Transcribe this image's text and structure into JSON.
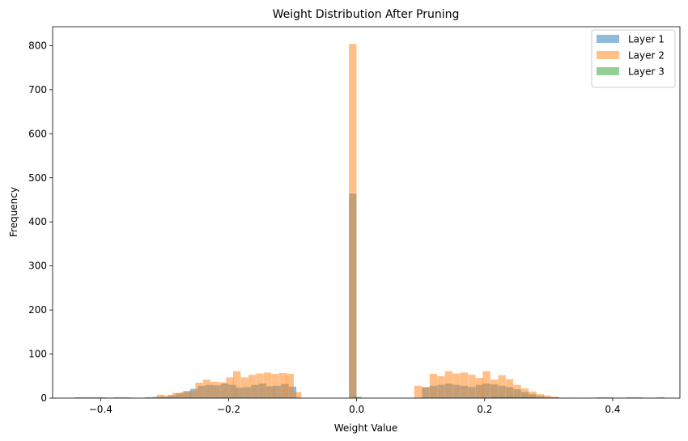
{
  "chart_data": {
    "type": "bar",
    "title": "Weight Distribution After Pruning",
    "xlabel": "Weight Value",
    "ylabel": "Frequency",
    "xlim": [
      -0.475,
      0.505
    ],
    "ylim": [
      0,
      843
    ],
    "xticks": [
      -0.4,
      -0.2,
      0.0,
      0.2,
      0.4
    ],
    "xtick_labels": [
      "−0.4",
      "−0.2",
      "0.0",
      "0.2",
      "0.4"
    ],
    "yticks": [
      0,
      100,
      200,
      300,
      400,
      500,
      600,
      700,
      800
    ],
    "ytick_labels": [
      "0",
      "100",
      "200",
      "300",
      "400",
      "500",
      "600",
      "700",
      "800"
    ],
    "legend_position": "top-right",
    "opacity": 0.5,
    "series": [
      {
        "name": "Layer 1",
        "color": "#1f77b4",
        "bin_width": 0.0118,
        "bins": [
          [
            -0.362,
            1
          ],
          [
            -0.331,
            2
          ],
          [
            -0.319,
            3
          ],
          [
            -0.307,
            4
          ],
          [
            -0.295,
            7
          ],
          [
            -0.283,
            11
          ],
          [
            -0.271,
            16
          ],
          [
            -0.26,
            21
          ],
          [
            -0.248,
            28
          ],
          [
            -0.236,
            30
          ],
          [
            -0.224,
            29
          ],
          [
            -0.212,
            33
          ],
          [
            -0.2,
            30
          ],
          [
            -0.189,
            24
          ],
          [
            -0.177,
            25
          ],
          [
            -0.165,
            30
          ],
          [
            -0.153,
            33
          ],
          [
            -0.141,
            27
          ],
          [
            -0.13,
            28
          ],
          [
            -0.118,
            32
          ],
          [
            -0.106,
            26
          ],
          [
            -0.012,
            464
          ],
          [
            0.102,
            25
          ],
          [
            0.114,
            28
          ],
          [
            0.126,
            30
          ],
          [
            0.138,
            33
          ],
          [
            0.15,
            30
          ],
          [
            0.162,
            28
          ],
          [
            0.174,
            25
          ],
          [
            0.186,
            30
          ],
          [
            0.197,
            33
          ],
          [
            0.209,
            31
          ],
          [
            0.221,
            28
          ],
          [
            0.233,
            25
          ],
          [
            0.245,
            20
          ],
          [
            0.257,
            14
          ],
          [
            0.269,
            9
          ],
          [
            0.281,
            5
          ],
          [
            0.292,
            2
          ]
        ]
      },
      {
        "name": "Layer 2",
        "color": "#ff7f0e",
        "bin_width": 0.0118,
        "bins": [
          [
            -0.312,
            8
          ],
          [
            -0.3,
            5
          ],
          [
            -0.288,
            12
          ],
          [
            -0.276,
            14
          ],
          [
            -0.264,
            16
          ],
          [
            -0.252,
            35
          ],
          [
            -0.24,
            42
          ],
          [
            -0.228,
            37
          ],
          [
            -0.216,
            36
          ],
          [
            -0.204,
            47
          ],
          [
            -0.193,
            61
          ],
          [
            -0.181,
            47
          ],
          [
            -0.169,
            53
          ],
          [
            -0.157,
            56
          ],
          [
            -0.145,
            58
          ],
          [
            -0.133,
            55
          ],
          [
            -0.121,
            57
          ],
          [
            -0.11,
            55
          ],
          [
            -0.098,
            14
          ],
          [
            -0.012,
            804
          ],
          [
            0.09,
            28
          ],
          [
            0.102,
            24
          ],
          [
            0.114,
            55
          ],
          [
            0.126,
            50
          ],
          [
            0.138,
            61
          ],
          [
            0.15,
            56
          ],
          [
            0.162,
            58
          ],
          [
            0.174,
            53
          ],
          [
            0.186,
            46
          ],
          [
            0.197,
            61
          ],
          [
            0.209,
            42
          ],
          [
            0.221,
            52
          ],
          [
            0.233,
            43
          ],
          [
            0.245,
            30
          ],
          [
            0.257,
            22
          ],
          [
            0.269,
            15
          ],
          [
            0.281,
            9
          ],
          [
            0.292,
            6
          ],
          [
            0.304,
            3
          ]
        ]
      },
      {
        "name": "Layer 3",
        "color": "#2ca02c",
        "bin_width": 0.0118,
        "bins": [
          [
            -0.44,
            2
          ],
          [
            -0.428,
            2
          ],
          [
            -0.416,
            2
          ],
          [
            -0.404,
            2
          ],
          [
            -0.392,
            1
          ],
          [
            -0.38,
            2
          ],
          [
            -0.368,
            2
          ],
          [
            -0.357,
            1
          ],
          [
            -0.004,
            3
          ],
          [
            0.181,
            1
          ],
          [
            0.209,
            2
          ],
          [
            0.221,
            2
          ],
          [
            0.233,
            3
          ],
          [
            0.245,
            2
          ],
          [
            0.257,
            3
          ],
          [
            0.269,
            2
          ],
          [
            0.281,
            1
          ],
          [
            0.292,
            1
          ],
          [
            0.304,
            2
          ],
          [
            0.316,
            1
          ],
          [
            0.328,
            1
          ],
          [
            0.351,
            1
          ],
          [
            0.363,
            1
          ],
          [
            0.375,
            2
          ],
          [
            0.387,
            2
          ],
          [
            0.399,
            1
          ],
          [
            0.41,
            1
          ],
          [
            0.422,
            2
          ],
          [
            0.434,
            2
          ],
          [
            0.446,
            1
          ],
          [
            0.458,
            1
          ],
          [
            0.469,
            2
          ]
        ]
      }
    ]
  }
}
